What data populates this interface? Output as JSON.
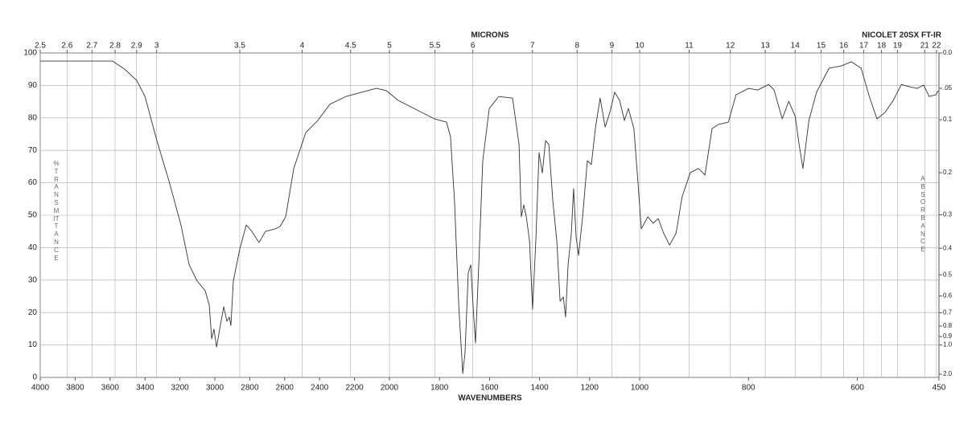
{
  "chart_data": {
    "type": "line",
    "top_label": "MICRONS",
    "instrument": "NICOLET 20SX FT-IR",
    "x_label": "WAVENUMBERS",
    "y_label": "%TRANSMITTANCE",
    "y2_label": "ABSORBANCE",
    "color": "#333333",
    "grid": true,
    "xlim": [
      4000,
      450
    ],
    "xbreaks": [
      2000,
      1000
    ],
    "xticks": [
      4000,
      3800,
      3600,
      3400,
      3200,
      3000,
      2800,
      2600,
      2400,
      2200,
      2000,
      1800,
      1600,
      1400,
      1200,
      1000,
      800,
      600,
      450
    ],
    "x2ticks": [
      2.5,
      2.6,
      2.7,
      2.8,
      2.9,
      3,
      3.5,
      4,
      4.5,
      5,
      5.5,
      6,
      7,
      8,
      9,
      10,
      11,
      12,
      13,
      14,
      15,
      16,
      17,
      18,
      19,
      21,
      22
    ],
    "ylim": [
      0,
      100
    ],
    "yticks": [
      0,
      10,
      20,
      30,
      40,
      50,
      60,
      70,
      80,
      90,
      100
    ],
    "y2scale": "absorbance",
    "y2ticks": [
      {
        "value": 0,
        "label": "0.0"
      },
      {
        "value": 0.05,
        "label": ".05"
      },
      0.1,
      0.2,
      0.3,
      0.4,
      0.5,
      0.6,
      0.7,
      0.8,
      0.9,
      {
        "value": 1,
        "label": "1.0"
      },
      {
        "value": 2,
        "label": "2.0"
      }
    ],
    "x": [
      4000,
      3770,
      3585,
      3516,
      3447,
      3400,
      3332,
      3263,
      3194,
      3147,
      3101,
      3055,
      3032,
      3018,
      3005,
      2990,
      2972,
      2949,
      2931,
      2917,
      2908,
      2894,
      2857,
      2820,
      2788,
      2747,
      2710,
      2654,
      2627,
      2594,
      2548,
      2479,
      2410,
      2341,
      2249,
      2111,
      2074,
      2018,
      1965,
      1884,
      1820,
      1772,
      1756,
      1740,
      1723,
      1707,
      1698,
      1685,
      1675,
      1666,
      1656,
      1643,
      1627,
      1601,
      1563,
      1508,
      1482,
      1473,
      1463,
      1453,
      1440,
      1428,
      1415,
      1402,
      1389,
      1376,
      1363,
      1347,
      1331,
      1318,
      1305,
      1296,
      1286,
      1273,
      1264,
      1254,
      1244,
      1228,
      1209,
      1193,
      1177,
      1158,
      1138,
      1119,
      1100,
      1080,
      1061,
      1045,
      1023,
      1006,
      997,
      985,
      975,
      966,
      956,
      945,
      933,
      922,
      907,
      892,
      880,
      867,
      855,
      837,
      823,
      800,
      783,
      763,
      753,
      738,
      726,
      714,
      707,
      700,
      689,
      675,
      652,
      630,
      611,
      593,
      578,
      564,
      549,
      534,
      519,
      504,
      490,
      478,
      468,
      456,
      451
    ],
    "values": [
      97.5,
      97.5,
      97.5,
      95,
      91.5,
      86.6,
      73,
      60.6,
      47,
      34.7,
      29.7,
      26.7,
      22.3,
      11.9,
      14.9,
      9.4,
      14.9,
      21.8,
      17.3,
      18.6,
      16,
      29.7,
      39.6,
      47,
      45,
      41.6,
      45,
      45.8,
      46.5,
      49.5,
      64.4,
      75.5,
      79.2,
      84.2,
      86.6,
      88.6,
      89.1,
      88.4,
      85.4,
      82.2,
      79.7,
      78.7,
      74.3,
      54.5,
      22.3,
      1.2,
      7.4,
      32.2,
      34.7,
      22.3,
      10.6,
      34.7,
      66.8,
      82.9,
      86.6,
      86.1,
      71.8,
      49.5,
      53.2,
      49.5,
      42,
      21,
      42,
      69.3,
      63,
      73,
      71.8,
      54.5,
      42,
      23.5,
      24.8,
      18.6,
      34.7,
      44.5,
      58.2,
      43.3,
      37.6,
      49.5,
      66.8,
      65.6,
      76.7,
      86.1,
      77.2,
      81.7,
      87.9,
      85.4,
      79.2,
      82.9,
      76.7,
      59.4,
      45.8,
      49.5,
      47.5,
      49,
      44.5,
      40.8,
      44.5,
      55.7,
      63.1,
      64.4,
      62.4,
      76.7,
      78,
      78.7,
      87.1,
      89.1,
      88.6,
      90.3,
      88.6,
      79.7,
      85.1,
      80.4,
      71.8,
      64.4,
      79.2,
      87.9,
      95.3,
      96,
      97.3,
      95.3,
      86.6,
      79.7,
      81.7,
      85.4,
      90.3,
      89.6,
      89.1,
      90.1,
      86.6,
      87.1,
      88.4
    ]
  }
}
